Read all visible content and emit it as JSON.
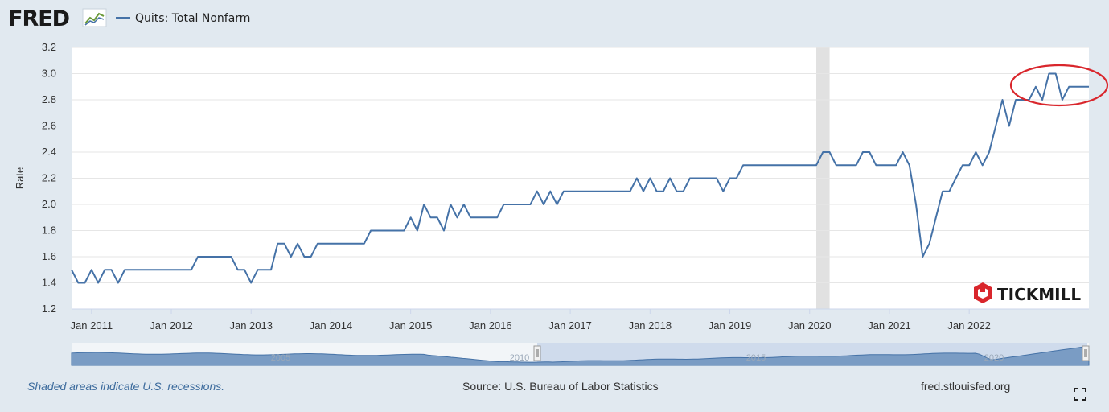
{
  "header": {
    "logo_text": "FRED",
    "legend_label": "Quits: Total Nonfarm"
  },
  "colors": {
    "series": "#4572a7",
    "recession": "#e1e1e1",
    "annotation": "#d9262c",
    "tickmill": "#d9262c"
  },
  "chart_data": {
    "type": "line",
    "title": "",
    "ylabel": "Rate",
    "xlabel": "",
    "ylim": [
      1.2,
      3.2
    ],
    "yticks": [
      "1.2",
      "1.4",
      "1.6",
      "1.8",
      "2.0",
      "2.2",
      "2.4",
      "2.6",
      "2.8",
      "3.0",
      "3.2"
    ],
    "xticks": [
      {
        "label": "Jan 2011",
        "date": "2011-01"
      },
      {
        "label": "Jan 2012",
        "date": "2012-01"
      },
      {
        "label": "Jan 2013",
        "date": "2013-01"
      },
      {
        "label": "Jan 2014",
        "date": "2014-01"
      },
      {
        "label": "Jan 2015",
        "date": "2015-01"
      },
      {
        "label": "Jan 2016",
        "date": "2016-01"
      },
      {
        "label": "Jan 2017",
        "date": "2017-01"
      },
      {
        "label": "Jan 2018",
        "date": "2018-01"
      },
      {
        "label": "Jan 2019",
        "date": "2019-01"
      },
      {
        "label": "Jan 2020",
        "date": "2020-01"
      },
      {
        "label": "Jan 2021",
        "date": "2021-01"
      },
      {
        "label": "Jan 2022",
        "date": "2022-01"
      }
    ],
    "start_date": "2010-10",
    "grid": true,
    "legend": "top-left",
    "recession": {
      "start": "2020-02",
      "end": "2020-04"
    },
    "series": [
      {
        "name": "Quits: Total Nonfarm",
        "start": "2010-10",
        "frequency": "monthly",
        "values": [
          1.5,
          1.4,
          1.4,
          1.5,
          1.4,
          1.5,
          1.5,
          1.4,
          1.5,
          1.5,
          1.5,
          1.5,
          1.5,
          1.5,
          1.5,
          1.5,
          1.5,
          1.5,
          1.5,
          1.6,
          1.6,
          1.6,
          1.6,
          1.6,
          1.6,
          1.5,
          1.5,
          1.4,
          1.5,
          1.5,
          1.5,
          1.7,
          1.7,
          1.6,
          1.7,
          1.6,
          1.6,
          1.7,
          1.7,
          1.7,
          1.7,
          1.7,
          1.7,
          1.7,
          1.7,
          1.8,
          1.8,
          1.8,
          1.8,
          1.8,
          1.8,
          1.9,
          1.8,
          2.0,
          1.9,
          1.9,
          1.8,
          2.0,
          1.9,
          2.0,
          1.9,
          1.9,
          1.9,
          1.9,
          1.9,
          2.0,
          2.0,
          2.0,
          2.0,
          2.0,
          2.1,
          2.0,
          2.1,
          2.0,
          2.1,
          2.1,
          2.1,
          2.1,
          2.1,
          2.1,
          2.1,
          2.1,
          2.1,
          2.1,
          2.1,
          2.2,
          2.1,
          2.2,
          2.1,
          2.1,
          2.2,
          2.1,
          2.1,
          2.2,
          2.2,
          2.2,
          2.2,
          2.2,
          2.1,
          2.2,
          2.2,
          2.3,
          2.3,
          2.3,
          2.3,
          2.3,
          2.3,
          2.3,
          2.3,
          2.3,
          2.3,
          2.3,
          2.3,
          2.4,
          2.4,
          2.3,
          2.3,
          2.3,
          2.3,
          2.4,
          2.4,
          2.3,
          2.3,
          2.3,
          2.3,
          2.4,
          2.3,
          2.0,
          1.6,
          1.7,
          1.9,
          2.1,
          2.1,
          2.2,
          2.3,
          2.3,
          2.4,
          2.3,
          2.4,
          2.6,
          2.8,
          2.6,
          2.8,
          2.8,
          2.8,
          2.9,
          2.8,
          3.0,
          3.0,
          2.8,
          2.9,
          2.9,
          2.9,
          2.9
        ]
      }
    ],
    "navigator_labels": [
      "2005",
      "2010",
      "2015",
      "2020"
    ]
  },
  "watermark": {
    "text": "TICKMILL"
  },
  "footer": {
    "recession_note": "Shaded areas indicate U.S. recessions.",
    "source": "Source: U.S. Bureau of Labor Statistics",
    "site": "fred.stlouisfed.org"
  }
}
